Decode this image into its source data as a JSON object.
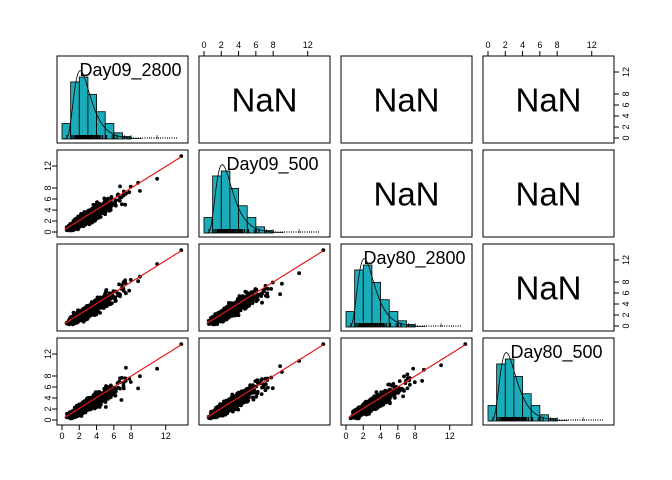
{
  "chart_data": {
    "type": "scatter",
    "variables": [
      "Day09_2800",
      "Day09_500",
      "Day80_2800",
      "Day80_500"
    ],
    "upper_panel_text": "NaN",
    "axis_range": [
      0,
      14
    ],
    "ticks": [
      0,
      2,
      4,
      6,
      8,
      12
    ],
    "histogram_color": "#1aacb8",
    "fit_line_color": "#e41a1c",
    "point_color": "#000000",
    "histogram": {
      "breaks": [
        0,
        1,
        2,
        3,
        4,
        5,
        6,
        7,
        8
      ],
      "relative_heights": [
        0.25,
        0.92,
        1.0,
        0.72,
        0.44,
        0.25,
        0.1,
        0.04
      ]
    },
    "panels": [
      {
        "row": 0,
        "col": 0,
        "kind": "histogram",
        "label": "Day09_2800"
      },
      {
        "row": 0,
        "col": 1,
        "kind": "correlation",
        "text": "NaN"
      },
      {
        "row": 0,
        "col": 2,
        "kind": "correlation",
        "text": "NaN"
      },
      {
        "row": 0,
        "col": 3,
        "kind": "correlation",
        "text": "NaN"
      },
      {
        "row": 1,
        "col": 0,
        "kind": "scatter",
        "x": "Day09_2800",
        "y": "Day09_500"
      },
      {
        "row": 1,
        "col": 1,
        "kind": "histogram",
        "label": "Day09_500"
      },
      {
        "row": 1,
        "col": 2,
        "kind": "correlation",
        "text": "NaN"
      },
      {
        "row": 1,
        "col": 3,
        "kind": "correlation",
        "text": "NaN"
      },
      {
        "row": 2,
        "col": 0,
        "kind": "scatter",
        "x": "Day09_2800",
        "y": "Day80_2800"
      },
      {
        "row": 2,
        "col": 1,
        "kind": "scatter",
        "x": "Day09_500",
        "y": "Day80_2800"
      },
      {
        "row": 2,
        "col": 2,
        "kind": "histogram",
        "label": "Day80_2800"
      },
      {
        "row": 2,
        "col": 3,
        "kind": "correlation",
        "text": "NaN"
      },
      {
        "row": 3,
        "col": 0,
        "kind": "scatter",
        "x": "Day09_2800",
        "y": "Day80_500"
      },
      {
        "row": 3,
        "col": 1,
        "kind": "scatter",
        "x": "Day09_500",
        "y": "Day80_500"
      },
      {
        "row": 3,
        "col": 2,
        "kind": "scatter",
        "x": "Day80_2800",
        "y": "Day80_500"
      },
      {
        "row": 3,
        "col": 3,
        "kind": "histogram",
        "label": "Day80_500"
      }
    ],
    "outlier_point": [
      13.8,
      13.8
    ]
  }
}
